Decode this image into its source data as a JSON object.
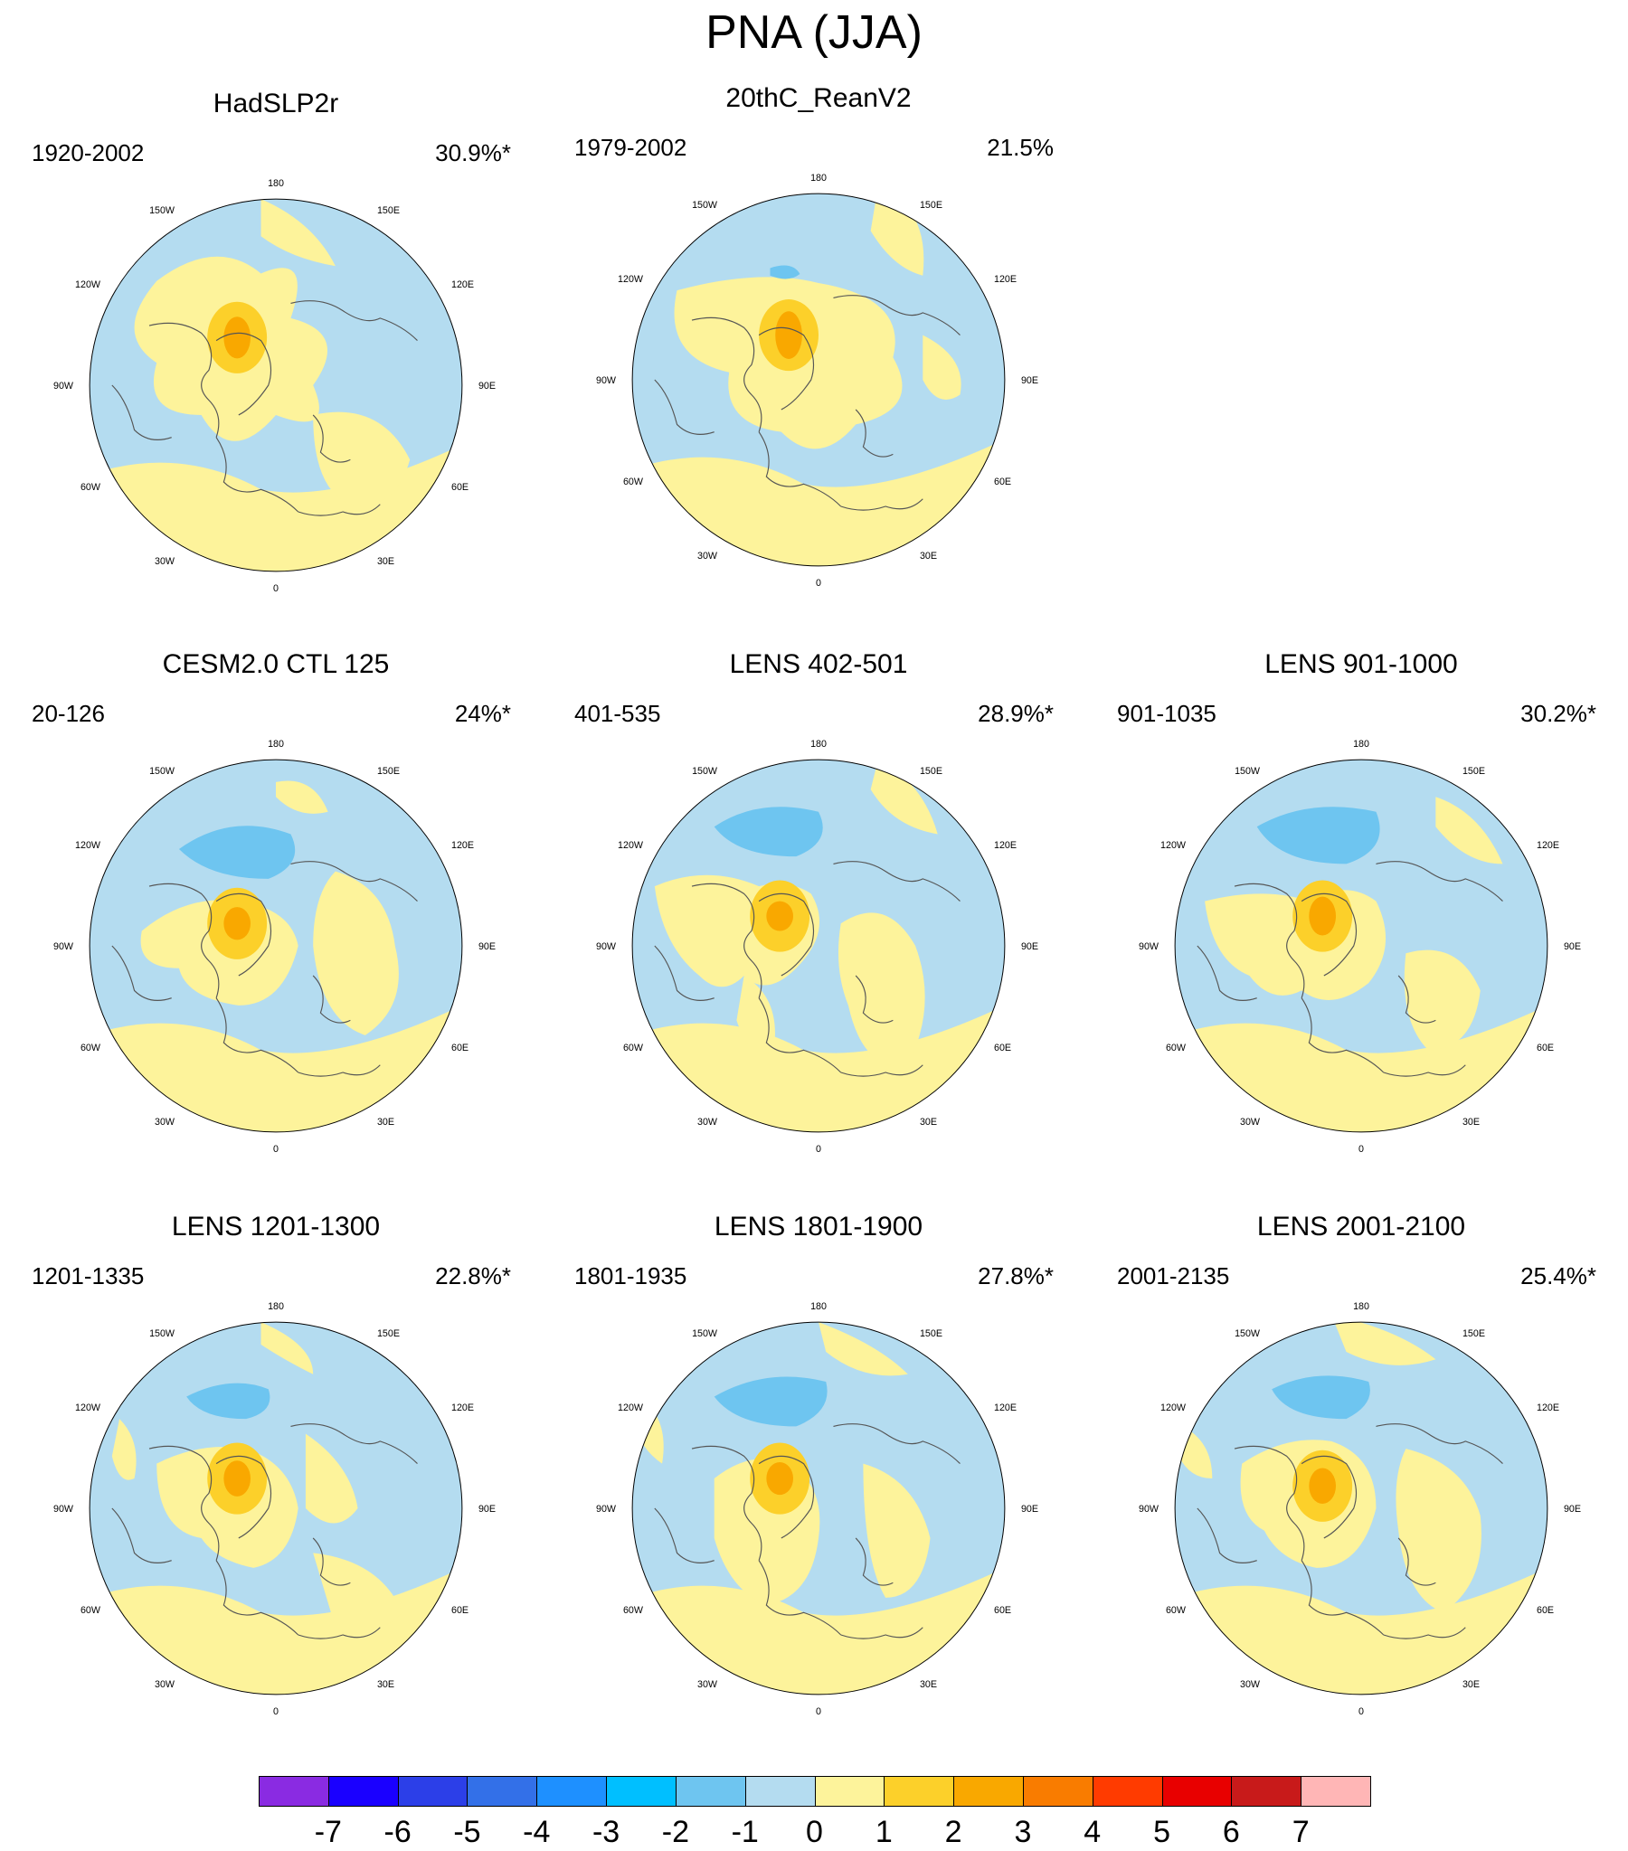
{
  "title": "PNA (JJA)",
  "panels": [
    {
      "title": "HadSLP2r",
      "period": "1920-2002",
      "percent": "30.9%*"
    },
    {
      "title": "20thC_ReanV2",
      "period": "1979-2002",
      "percent": "21.5%"
    },
    {
      "title": "CESM2.0 CTL 125",
      "period": "20-126",
      "percent": "24%*"
    },
    {
      "title": "LENS 402-501",
      "period": "401-535",
      "percent": "28.9%*"
    },
    {
      "title": "LENS 901-1000",
      "period": "901-1035",
      "percent": "30.2%*"
    },
    {
      "title": "LENS 1201-1300",
      "period": "1201-1335",
      "percent": "22.8%*"
    },
    {
      "title": "LENS 1801-1900",
      "period": "1801-1935",
      "percent": "27.8%*"
    },
    {
      "title": "LENS 2001-2100",
      "period": "2001-2135",
      "percent": "25.4%*"
    }
  ],
  "longitude_labels": [
    "180",
    "150E",
    "120E",
    "90E",
    "60E",
    "30E",
    "0",
    "30W",
    "60W",
    "90W",
    "120W",
    "150W"
  ],
  "colorbar": {
    "labels": [
      "-7",
      "-6",
      "-5",
      "-4",
      "-3",
      "-2",
      "-1",
      "0",
      "1",
      "2",
      "3",
      "4",
      "5",
      "6",
      "7"
    ],
    "colors": [
      "#8a2be2",
      "#1a00ff",
      "#2c3fe8",
      "#3370e8",
      "#1e90ff",
      "#00bfff",
      "#6ec5f0",
      "#b4dcf0",
      "#fdf39b",
      "#fcd02a",
      "#f9a800",
      "#f97c00",
      "#ff3b00",
      "#e80000",
      "#c81a1a",
      "#ffb6b6"
    ]
  },
  "chart_data": {
    "type": "heatmap",
    "title": "PNA (JJA)",
    "projection": "north polar stereographic",
    "levels": [
      -7,
      -6,
      -5,
      -4,
      -3,
      -2,
      -1,
      0,
      1,
      2,
      3,
      4,
      5,
      6,
      7
    ],
    "panels": [
      {
        "title": "HadSLP2r",
        "period": "1920-2002",
        "variance_explained": "30.9%*"
      },
      {
        "title": "20thC_ReanV2",
        "period": "1979-2002",
        "variance_explained": "21.5%"
      },
      {
        "title": "CESM2.0 CTL 125",
        "period": "20-126",
        "variance_explained": "24%*"
      },
      {
        "title": "LENS 402-501",
        "period": "401-535",
        "variance_explained": "28.9%*"
      },
      {
        "title": "LENS 901-1000",
        "period": "901-1035",
        "variance_explained": "30.2%*"
      },
      {
        "title": "LENS 1201-1300",
        "period": "1201-1335",
        "variance_explained": "22.8%*"
      },
      {
        "title": "LENS 1801-1900",
        "period": "1801-1935",
        "variance_explained": "27.8%*"
      },
      {
        "title": "LENS 2001-2100",
        "period": "2001-2135",
        "variance_explained": "25.4%*"
      }
    ]
  }
}
